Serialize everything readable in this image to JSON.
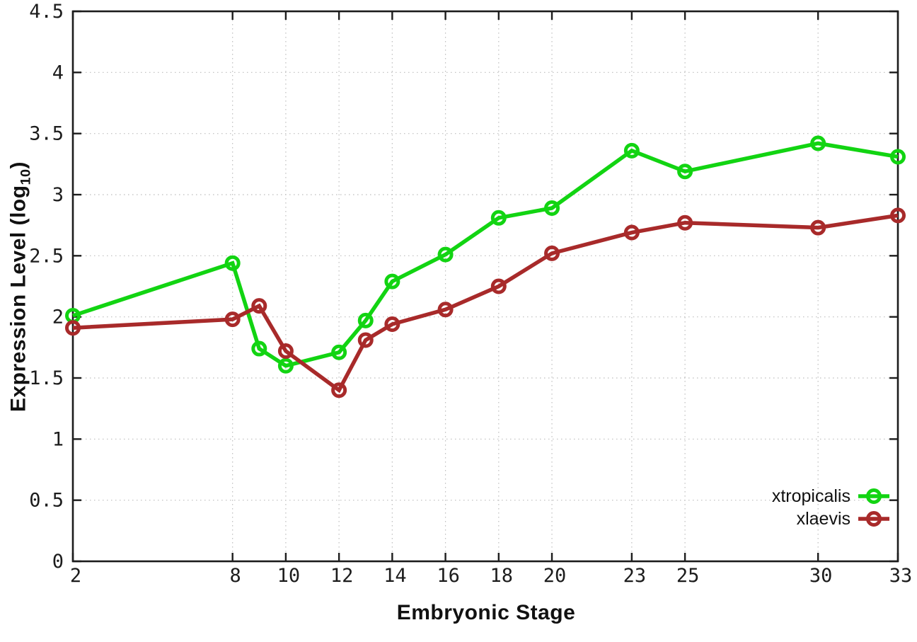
{
  "chart_data": {
    "type": "line",
    "title": "",
    "xlabel": "Embryonic Stage",
    "ylabel": "Expression Level (log10)",
    "ylabel_parts": {
      "pre": "Expression Level (log",
      "sub": "10",
      "post": ")"
    },
    "xlim": [
      2,
      33
    ],
    "ylim": [
      0,
      4.5
    ],
    "x_ticks": [
      2,
      8,
      10,
      12,
      14,
      16,
      18,
      20,
      23,
      25,
      30,
      33
    ],
    "y_ticks": [
      "0",
      "0.5",
      "1",
      "1.5",
      "2",
      "2.5",
      "3",
      "3.5",
      "4",
      "4.5"
    ],
    "grid": true,
    "legend_position": "bottom-right",
    "marker": "open-circle",
    "x": [
      2,
      8,
      9,
      10,
      12,
      13,
      14,
      16,
      18,
      20,
      23,
      25,
      30,
      33
    ],
    "series": [
      {
        "name": "xtropicalis",
        "color": "#12d412",
        "values": [
          2.01,
          2.44,
          1.74,
          1.6,
          1.71,
          1.97,
          2.29,
          2.51,
          2.81,
          2.89,
          3.36,
          3.19,
          3.42,
          3.31
        ]
      },
      {
        "name": "xlaevis",
        "color": "#a82a2a",
        "values": [
          1.91,
          1.98,
          2.09,
          1.72,
          1.4,
          1.81,
          1.94,
          2.06,
          2.25,
          2.52,
          2.69,
          2.77,
          2.73,
          2.83
        ]
      }
    ]
  },
  "colors": {
    "background": "#ffffff",
    "border": "#1c1c1c",
    "grid": "#bdbdbd",
    "tick_text": "#1c1c1c"
  }
}
